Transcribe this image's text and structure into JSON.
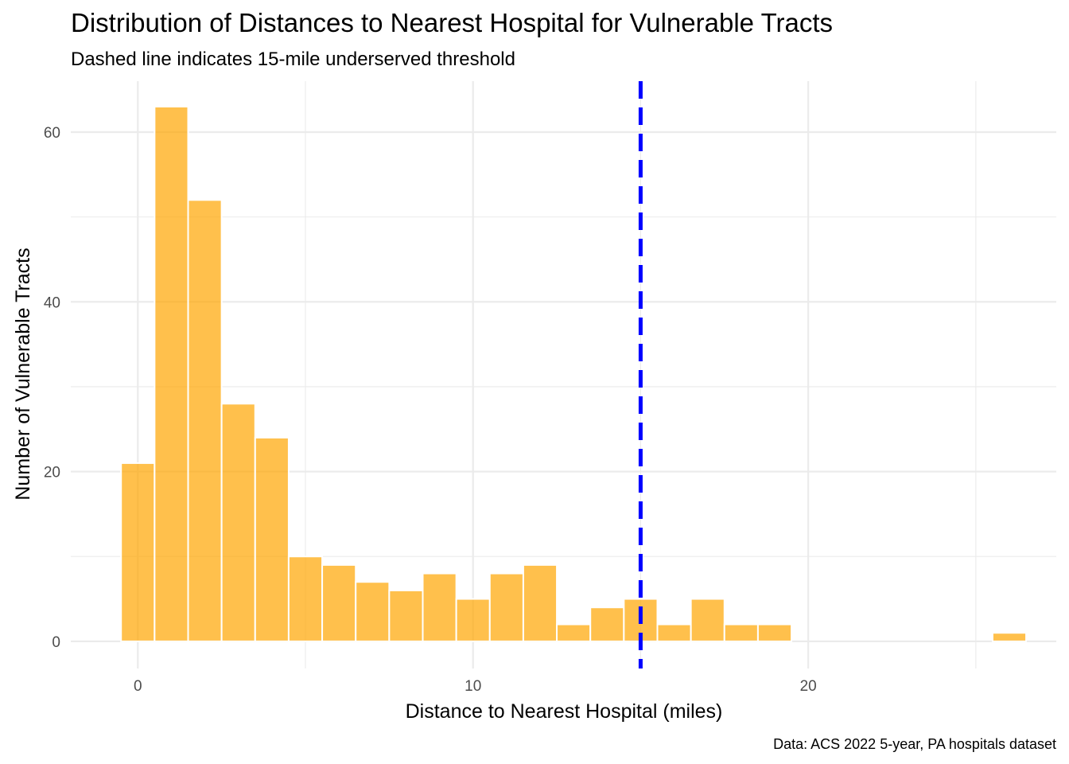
{
  "chart_data": {
    "type": "bar",
    "title": "Distribution of Distances to Nearest Hospital for Vulnerable Tracts",
    "subtitle": "Dashed line indicates 15-mile underserved threshold",
    "xlabel": "Distance to Nearest Hospital (miles)",
    "ylabel": "Number of Vulnerable Tracts",
    "caption": "Data: ACS 2022 5-year, PA hospitals dataset",
    "xlim": [
      -2,
      27.4
    ],
    "ylim": [
      -3.2,
      66
    ],
    "x_ticks": [
      0,
      10,
      20
    ],
    "y_ticks": [
      0,
      20,
      40,
      60
    ],
    "x_tick_labels": [
      "0",
      "10",
      "20"
    ],
    "y_tick_labels": [
      "0",
      "20",
      "40",
      "60"
    ],
    "bin_width": 1,
    "bins_start": [
      -0.5,
      0.5,
      1.5,
      2.5,
      3.5,
      4.5,
      5.5,
      6.5,
      7.5,
      8.5,
      9.5,
      10.5,
      11.5,
      12.5,
      13.5,
      14.5,
      15.5,
      16.5,
      17.5,
      18.5,
      19.5,
      20.5,
      21.5,
      22.5,
      23.5,
      24.5,
      25.5
    ],
    "values": [
      21,
      63,
      52,
      28,
      24,
      10,
      9,
      7,
      6,
      8,
      5,
      8,
      9,
      2,
      4,
      5,
      2,
      5,
      2,
      2,
      0,
      0,
      0,
      0,
      0,
      0,
      1
    ],
    "threshold": {
      "x": 15,
      "style": "dashed"
    },
    "grid": true,
    "colors": {
      "bar": "#ffa500",
      "bar_opacity": 0.7,
      "threshold_line": "#0000ff",
      "grid": "#ebebeb"
    }
  }
}
